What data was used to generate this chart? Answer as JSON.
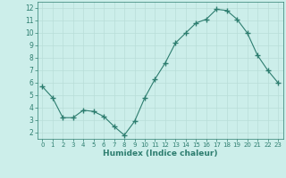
{
  "x": [
    0,
    1,
    2,
    3,
    4,
    5,
    6,
    7,
    8,
    9,
    10,
    11,
    12,
    13,
    14,
    15,
    16,
    17,
    18,
    19,
    20,
    21,
    22,
    23
  ],
  "y": [
    5.7,
    4.8,
    3.2,
    3.2,
    3.8,
    3.7,
    3.3,
    2.5,
    1.8,
    2.9,
    4.8,
    6.3,
    7.6,
    9.2,
    10.0,
    10.8,
    11.1,
    11.9,
    11.8,
    11.1,
    10.0,
    8.2,
    7.0,
    6.0
  ],
  "line_color": "#2d7d6f",
  "marker": "+",
  "marker_size": 4,
  "xlabel": "Humidex (Indice chaleur)",
  "xlim": [
    -0.5,
    23.5
  ],
  "ylim": [
    1.5,
    12.5
  ],
  "yticks": [
    2,
    3,
    4,
    5,
    6,
    7,
    8,
    9,
    10,
    11,
    12
  ],
  "xticks": [
    0,
    1,
    2,
    3,
    4,
    5,
    6,
    7,
    8,
    9,
    10,
    11,
    12,
    13,
    14,
    15,
    16,
    17,
    18,
    19,
    20,
    21,
    22,
    23
  ],
  "bg_color": "#cceeea",
  "grid_color": "#b8ddd8",
  "line_and_text_color": "#2d7d6f"
}
